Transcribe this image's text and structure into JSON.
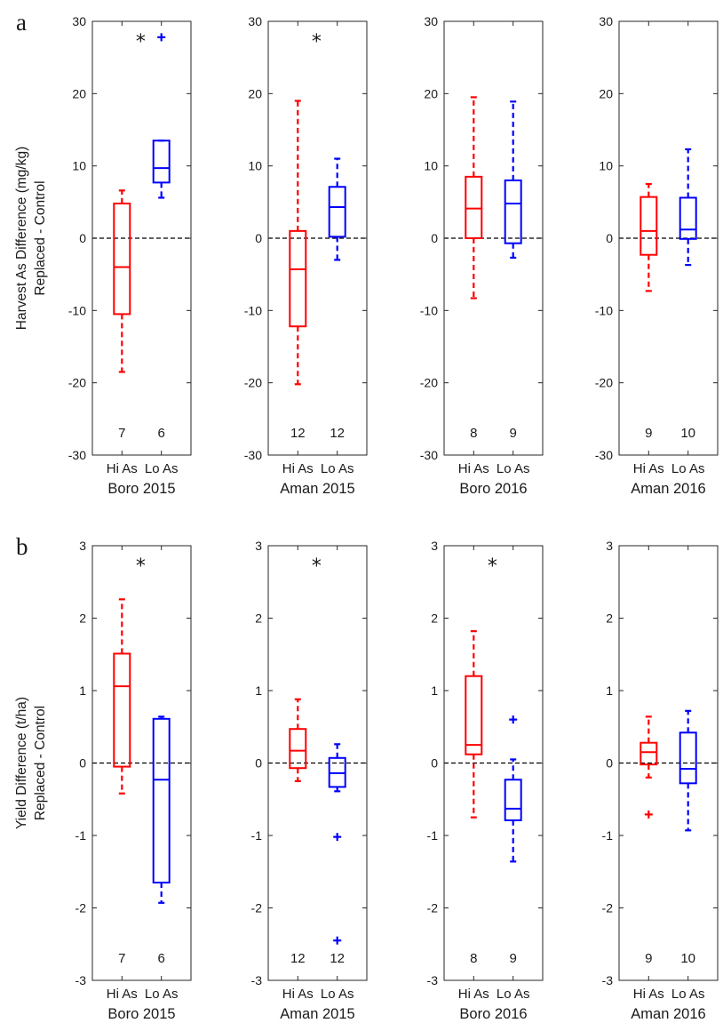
{
  "colors": {
    "hi": "#ff0000",
    "lo": "#0000ff",
    "axis": "#262626",
    "zero_line": "#000000"
  },
  "rows": [
    {
      "letter": "a",
      "ylabel_line1": "Harvest As Difference (mg/kg)",
      "ylabel_line2": "Replaced - Control",
      "ylim": [
        -30,
        30
      ],
      "yticks": [
        -30,
        -20,
        -10,
        0,
        10,
        20,
        30
      ],
      "ytick_labels": [
        "-30",
        "-20",
        "-10",
        "0",
        "10",
        "20",
        "30"
      ]
    },
    {
      "letter": "b",
      "ylabel_line1": "Yield Difference (t/ha)",
      "ylabel_line2": "Replaced - Control",
      "ylim": [
        -3,
        3
      ],
      "yticks": [
        -3,
        -2,
        -1,
        0,
        1,
        2,
        3
      ],
      "ytick_labels": [
        "-3",
        "-2",
        "-1",
        "0",
        "1",
        "2",
        "3"
      ]
    }
  ],
  "chart_data": [
    {
      "type": "box",
      "row": 0,
      "col": 0,
      "xlabel": "Boro 2015",
      "significant": true,
      "star": "*",
      "categories": [
        "Hi As",
        "Lo As"
      ],
      "n": [
        "7",
        "6"
      ],
      "boxes": [
        {
          "name": "Hi As",
          "whisker_low": -18.5,
          "q1": -10.5,
          "median": -4,
          "q3": 4.8,
          "whisker_high": 6.6,
          "outliers": []
        },
        {
          "name": "Lo As",
          "whisker_low": 5.6,
          "q1": 7.7,
          "median": 9.7,
          "q3": 13.5,
          "whisker_high": 13.5,
          "outliers": [
            27.8
          ]
        }
      ]
    },
    {
      "type": "box",
      "row": 0,
      "col": 1,
      "xlabel": "Aman 2015",
      "significant": true,
      "star": "*",
      "categories": [
        "Hi As",
        "Lo As"
      ],
      "n": [
        "12",
        "12"
      ],
      "boxes": [
        {
          "name": "Hi As",
          "whisker_low": -20.2,
          "q1": -12.2,
          "median": -4.3,
          "q3": 1,
          "whisker_high": 19,
          "outliers": []
        },
        {
          "name": "Lo As",
          "whisker_low": -3,
          "q1": 0.2,
          "median": 4.3,
          "q3": 7.1,
          "whisker_high": 11,
          "outliers": []
        }
      ]
    },
    {
      "type": "box",
      "row": 0,
      "col": 2,
      "xlabel": "Boro 2016",
      "significant": false,
      "star": "",
      "categories": [
        "Hi As",
        "Lo As"
      ],
      "n": [
        "8",
        "9"
      ],
      "boxes": [
        {
          "name": "Hi As",
          "whisker_low": -8.3,
          "q1": 0,
          "median": 4.1,
          "q3": 8.5,
          "whisker_high": 19.5,
          "outliers": []
        },
        {
          "name": "Lo As",
          "whisker_low": -2.7,
          "q1": -0.7,
          "median": 4.8,
          "q3": 8,
          "whisker_high": 18.9,
          "outliers": []
        }
      ]
    },
    {
      "type": "box",
      "row": 0,
      "col": 3,
      "xlabel": "Aman 2016",
      "significant": false,
      "star": "",
      "categories": [
        "Hi As",
        "Lo As"
      ],
      "n": [
        "9",
        "10"
      ],
      "boxes": [
        {
          "name": "Hi As",
          "whisker_low": -7.3,
          "q1": -2.3,
          "median": 1,
          "q3": 5.7,
          "whisker_high": 7.5,
          "outliers": []
        },
        {
          "name": "Lo As",
          "whisker_low": -3.7,
          "q1": -0.1,
          "median": 1.2,
          "q3": 5.6,
          "whisker_high": 12.3,
          "outliers": []
        }
      ]
    },
    {
      "type": "box",
      "row": 1,
      "col": 0,
      "xlabel": "Boro 2015",
      "significant": true,
      "star": "*",
      "categories": [
        "Hi As",
        "Lo As"
      ],
      "n": [
        "7",
        "6"
      ],
      "boxes": [
        {
          "name": "Hi As",
          "whisker_low": -0.42,
          "q1": -0.05,
          "median": 1.06,
          "q3": 1.51,
          "whisker_high": 2.26,
          "outliers": []
        },
        {
          "name": "Lo As",
          "whisker_low": -1.93,
          "q1": -1.65,
          "median": -0.23,
          "q3": 0.61,
          "whisker_high": 0.64,
          "outliers": []
        }
      ]
    },
    {
      "type": "box",
      "row": 1,
      "col": 1,
      "xlabel": "Aman 2015",
      "significant": true,
      "star": "*",
      "categories": [
        "Hi As",
        "Lo As"
      ],
      "n": [
        "12",
        "12"
      ],
      "boxes": [
        {
          "name": "Hi As",
          "whisker_low": -0.25,
          "q1": -0.07,
          "median": 0.17,
          "q3": 0.47,
          "whisker_high": 0.88,
          "outliers": []
        },
        {
          "name": "Lo As",
          "whisker_low": -0.39,
          "q1": -0.33,
          "median": -0.14,
          "q3": 0.07,
          "whisker_high": 0.26,
          "outliers": [
            -1.02,
            -2.45
          ]
        }
      ]
    },
    {
      "type": "box",
      "row": 1,
      "col": 2,
      "xlabel": "Boro 2016",
      "significant": true,
      "star": "*",
      "categories": [
        "Hi As",
        "Lo As"
      ],
      "n": [
        "8",
        "9"
      ],
      "boxes": [
        {
          "name": "Hi As",
          "whisker_low": -0.75,
          "q1": 0.12,
          "median": 0.25,
          "q3": 1.2,
          "whisker_high": 1.82,
          "outliers": []
        },
        {
          "name": "Lo As",
          "whisker_low": -1.36,
          "q1": -0.79,
          "median": -0.63,
          "q3": -0.23,
          "whisker_high": 0.05,
          "outliers": [
            0.6
          ]
        }
      ]
    },
    {
      "type": "box",
      "row": 1,
      "col": 3,
      "xlabel": "Aman 2016",
      "significant": false,
      "star": "",
      "categories": [
        "Hi As",
        "Lo As"
      ],
      "n": [
        "9",
        "10"
      ],
      "boxes": [
        {
          "name": "Hi As",
          "whisker_low": -0.2,
          "q1": -0.02,
          "median": 0.15,
          "q3": 0.28,
          "whisker_high": 0.64,
          "outliers": [
            -0.71
          ]
        },
        {
          "name": "Lo As",
          "whisker_low": -0.93,
          "q1": -0.28,
          "median": -0.08,
          "q3": 0.42,
          "whisker_high": 0.72,
          "outliers": []
        }
      ]
    }
  ]
}
